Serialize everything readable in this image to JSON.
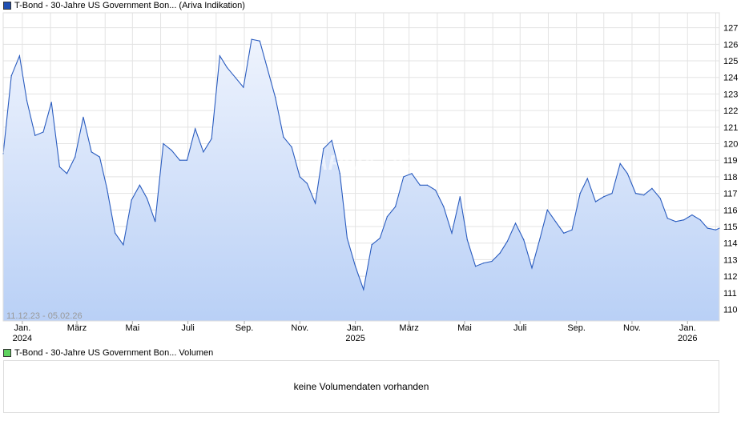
{
  "legend_price": {
    "label": "T-Bond - 30-Jahre US Government Bon... (Ariva Indikation)",
    "color": "#1f4fb3"
  },
  "legend_volume": {
    "label": "T-Bond - 30-Jahre US Government Bon... Volumen",
    "color": "#5fd35f"
  },
  "watermark": "ARIVA.DE",
  "volume_message": "keine Volumendaten vorhanden",
  "chart_data": {
    "type": "area",
    "range_label": "11.12.23 - 05.02.26",
    "ylim": [
      109.3,
      127.9
    ],
    "yticks": [
      110,
      111,
      112,
      113,
      114,
      115,
      116,
      117,
      118,
      119,
      120,
      121,
      122,
      123,
      124,
      125,
      126,
      127
    ],
    "xlim": [
      "2023-12-11",
      "2026-02-05"
    ],
    "xticks": [
      {
        "date": "2024-01-01",
        "label": "Jan.",
        "year": "2024"
      },
      {
        "date": "2024-03-01",
        "label": "März",
        "year": ""
      },
      {
        "date": "2024-05-01",
        "label": "Mai",
        "year": ""
      },
      {
        "date": "2024-07-01",
        "label": "Juli",
        "year": ""
      },
      {
        "date": "2024-09-01",
        "label": "Sep.",
        "year": ""
      },
      {
        "date": "2024-11-01",
        "label": "Nov.",
        "year": ""
      },
      {
        "date": "2025-01-01",
        "label": "Jan.",
        "year": "2025"
      },
      {
        "date": "2025-03-01",
        "label": "März",
        "year": ""
      },
      {
        "date": "2025-05-01",
        "label": "Mai",
        "year": ""
      },
      {
        "date": "2025-07-01",
        "label": "Juli",
        "year": ""
      },
      {
        "date": "2025-09-01",
        "label": "Sep.",
        "year": ""
      },
      {
        "date": "2025-11-01",
        "label": "Nov.",
        "year": ""
      },
      {
        "date": "2026-01-01",
        "label": "Jan.",
        "year": "2026"
      }
    ],
    "grid": true,
    "line_color": "#2a5cbf",
    "fill_color": "#c2d6f7",
    "x": [
      "2023-12-11",
      "2023-12-20",
      "2023-12-29",
      "2024-01-06",
      "2024-01-15",
      "2024-01-24",
      "2024-02-02",
      "2024-02-11",
      "2024-02-19",
      "2024-02-28",
      "2024-03-08",
      "2024-03-17",
      "2024-03-26",
      "2024-04-03",
      "2024-04-12",
      "2024-04-21",
      "2024-04-30",
      "2024-05-09",
      "2024-05-17",
      "2024-05-26",
      "2024-06-04",
      "2024-06-13",
      "2024-06-22",
      "2024-06-30",
      "2024-07-09",
      "2024-07-18",
      "2024-07-27",
      "2024-08-05",
      "2024-08-13",
      "2024-08-22",
      "2024-08-31",
      "2024-09-09",
      "2024-09-18",
      "2024-09-26",
      "2024-10-05",
      "2024-10-14",
      "2024-10-23",
      "2024-11-01",
      "2024-11-09",
      "2024-11-18",
      "2024-11-27",
      "2024-12-06",
      "2024-12-15",
      "2024-12-23",
      "2025-01-01",
      "2025-01-10",
      "2025-01-19",
      "2025-01-28",
      "2025-02-05",
      "2025-02-14",
      "2025-02-23",
      "2025-03-04",
      "2025-03-13",
      "2025-03-21",
      "2025-03-30",
      "2025-04-08",
      "2025-04-17",
      "2025-04-26",
      "2025-05-04",
      "2025-05-13",
      "2025-05-22",
      "2025-05-31",
      "2025-06-09",
      "2025-06-17",
      "2025-06-26",
      "2025-07-05",
      "2025-07-14",
      "2025-07-23",
      "2025-07-31",
      "2025-08-09",
      "2025-08-18",
      "2025-08-27",
      "2025-09-05",
      "2025-09-13",
      "2025-09-22",
      "2025-10-01",
      "2025-10-10",
      "2025-10-19",
      "2025-10-27",
      "2025-11-05",
      "2025-11-14",
      "2025-11-23",
      "2025-12-02",
      "2025-12-10",
      "2025-12-19",
      "2025-12-28",
      "2026-01-06",
      "2026-01-15",
      "2026-01-23",
      "2026-02-01",
      "2026-02-05"
    ],
    "y": [
      119.4,
      124.1,
      125.3,
      122.6,
      120.5,
      120.7,
      122.5,
      118.6,
      118.2,
      119.2,
      121.6,
      119.5,
      119.2,
      117.3,
      114.6,
      113.9,
      116.6,
      117.5,
      116.7,
      115.3,
      120.0,
      119.6,
      119.0,
      119.0,
      120.9,
      119.5,
      120.3,
      125.3,
      124.6,
      124.0,
      123.4,
      126.3,
      126.2,
      124.6,
      122.8,
      120.4,
      119.8,
      118.0,
      117.6,
      116.4,
      119.7,
      120.2,
      118.2,
      114.3,
      112.6,
      111.2,
      113.9,
      114.3,
      115.6,
      116.2,
      118.0,
      118.2,
      117.5,
      117.5,
      117.2,
      116.2,
      114.6,
      116.8,
      114.2,
      112.6,
      112.8,
      112.9,
      113.4,
      114.1,
      115.2,
      114.2,
      112.5,
      114.3,
      116.0,
      115.3,
      114.6,
      114.8,
      117.0,
      117.9,
      116.5,
      116.8,
      117.0,
      118.8,
      118.2,
      117.0,
      116.9,
      117.3,
      116.7,
      115.5,
      115.3,
      115.4,
      115.7,
      115.4,
      114.9,
      114.8,
      114.9
    ]
  }
}
